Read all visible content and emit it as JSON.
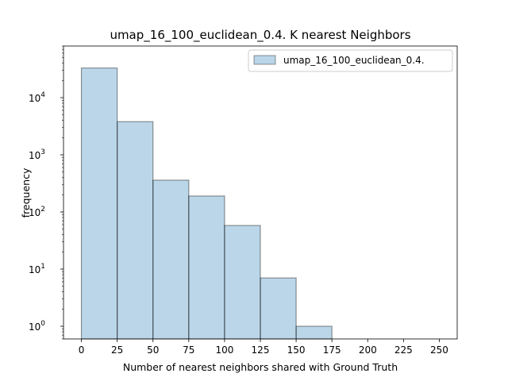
{
  "chart_data": {
    "type": "bar",
    "subtype": "histogram",
    "title": "umap_16_100_euclidean_0.4. K nearest Neighbors",
    "xlabel": "Number of nearest neighbors shared with Ground Truth",
    "ylabel": "frequency",
    "yscale": "log",
    "xlim": [
      -12.5,
      262.5
    ],
    "ylim": [
      0.6,
      80000
    ],
    "x_ticks": [
      0,
      25,
      50,
      75,
      100,
      125,
      150,
      175,
      200,
      225,
      250
    ],
    "y_ticks": [
      {
        "value": 1,
        "base": "10",
        "exp": "0"
      },
      {
        "value": 10,
        "base": "10",
        "exp": "1"
      },
      {
        "value": 100,
        "base": "10",
        "exp": "2"
      },
      {
        "value": 1000,
        "base": "10",
        "exp": "3"
      },
      {
        "value": 10000,
        "base": "10",
        "exp": "4"
      }
    ],
    "bins": [
      {
        "start": 0,
        "end": 25,
        "value": 33000
      },
      {
        "start": 25,
        "end": 50,
        "value": 3800
      },
      {
        "start": 50,
        "end": 75,
        "value": 360
      },
      {
        "start": 75,
        "end": 100,
        "value": 190
      },
      {
        "start": 100,
        "end": 125,
        "value": 58
      },
      {
        "start": 125,
        "end": 150,
        "value": 7
      },
      {
        "start": 150,
        "end": 175,
        "value": 1
      }
    ],
    "series": [
      {
        "name": "umap_16_100_euclidean_0.4.",
        "color": "#1f77b4",
        "opacity": 0.3,
        "edgecolor": "#000000"
      }
    ],
    "legend_position": "top-right",
    "grid": false
  }
}
